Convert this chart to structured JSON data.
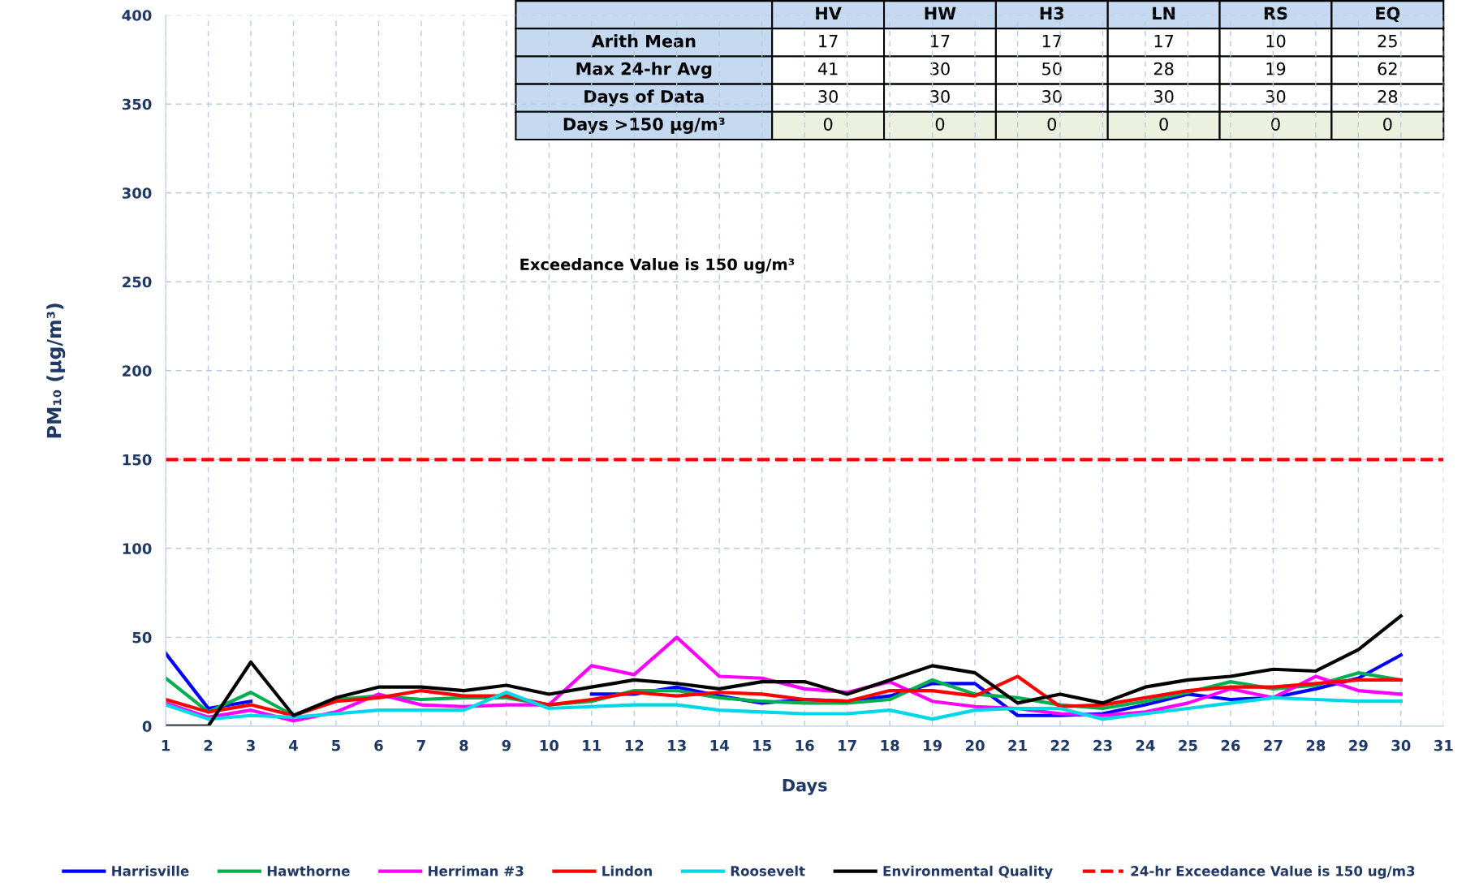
{
  "chart_data": {
    "type": "line",
    "xlabel": "Days",
    "ylabel": "PM₁₀ (µg/m³)",
    "x": [
      1,
      2,
      3,
      4,
      5,
      6,
      7,
      8,
      9,
      10,
      11,
      12,
      13,
      14,
      15,
      16,
      17,
      18,
      19,
      20,
      21,
      22,
      23,
      24,
      25,
      26,
      27,
      28,
      29,
      30
    ],
    "xlim": [
      1,
      31
    ],
    "xticks": [
      1,
      2,
      3,
      4,
      5,
      6,
      7,
      8,
      9,
      10,
      11,
      12,
      13,
      14,
      15,
      16,
      17,
      18,
      19,
      20,
      21,
      22,
      23,
      24,
      25,
      26,
      27,
      28,
      29,
      30,
      31
    ],
    "ylim": [
      0,
      400
    ],
    "yticks": [
      0,
      50,
      100,
      150,
      200,
      250,
      300,
      350,
      400
    ],
    "grid": true,
    "legend": "bottom",
    "marker": "none",
    "line_style": "solid",
    "series": [
      {
        "name": "Harrisville",
        "color": "#0000ff",
        "values": [
          41,
          10,
          14,
          null,
          null,
          null,
          null,
          null,
          null,
          null,
          18,
          18,
          22,
          17,
          13,
          15,
          14,
          17,
          24,
          24,
          6,
          6,
          7,
          12,
          18,
          15,
          16,
          21,
          27,
          40
        ]
      },
      {
        "name": "Hawthorne",
        "color": "#00b050",
        "values": [
          27,
          8,
          19,
          6,
          15,
          17,
          15,
          16,
          16,
          12,
          14,
          20,
          20,
          16,
          14,
          13,
          13,
          15,
          26,
          18,
          16,
          12,
          10,
          14,
          19,
          25,
          21,
          23,
          30,
          26
        ]
      },
      {
        "name": "Herriman #3",
        "color": "#ff00ff",
        "values": [
          13,
          5,
          9,
          3,
          8,
          18,
          12,
          11,
          12,
          12,
          34,
          29,
          50,
          28,
          27,
          21,
          19,
          25,
          14,
          11,
          10,
          7,
          6,
          8,
          13,
          21,
          16,
          28,
          20,
          18
        ]
      },
      {
        "name": "Lindon",
        "color": "#ff0000",
        "values": [
          15,
          8,
          12,
          6,
          14,
          16,
          20,
          17,
          17,
          12,
          15,
          19,
          17,
          19,
          18,
          15,
          14,
          20,
          20,
          17,
          28,
          11,
          12,
          16,
          20,
          22,
          22,
          24,
          26,
          26
        ]
      },
      {
        "name": "Roosevelt",
        "color": "#00d8e8",
        "values": [
          12,
          4,
          6,
          5,
          7,
          9,
          9,
          9,
          19,
          10,
          11,
          12,
          12,
          9,
          8,
          7,
          7,
          9,
          4,
          9,
          10,
          10,
          4,
          7,
          10,
          13,
          16,
          15,
          14,
          14
        ]
      },
      {
        "name": "Environmental Quality",
        "color": "#000000",
        "values": [
          0,
          0,
          36,
          6,
          16,
          22,
          22,
          20,
          23,
          18,
          22,
          26,
          24,
          21,
          25,
          25,
          18,
          26,
          34,
          30,
          13,
          18,
          13,
          22,
          26,
          28,
          32,
          31,
          43,
          62
        ]
      }
    ],
    "ref_lines": [
      {
        "axis": "y",
        "value": 150,
        "label": "24-hr Exceedance Value is 150 ug/m3",
        "color": "#ff0000",
        "line_style": "dashed"
      }
    ],
    "annotations": [
      "Exceedance Value is 150 ug/m³",
      "HV",
      "HW",
      "H3",
      "LN",
      "RS",
      "EQ",
      "Arith Mean",
      "17",
      "17",
      "17",
      "17",
      "10",
      "25",
      "Max 24-hr Avg",
      "41",
      "30",
      "50",
      "28",
      "19",
      "62",
      "Days of Data",
      "30",
      "30",
      "30",
      "30",
      "30",
      "28",
      "Days >150 µg/m³",
      "0",
      "0",
      "0",
      "0",
      "0",
      "0"
    ]
  }
}
